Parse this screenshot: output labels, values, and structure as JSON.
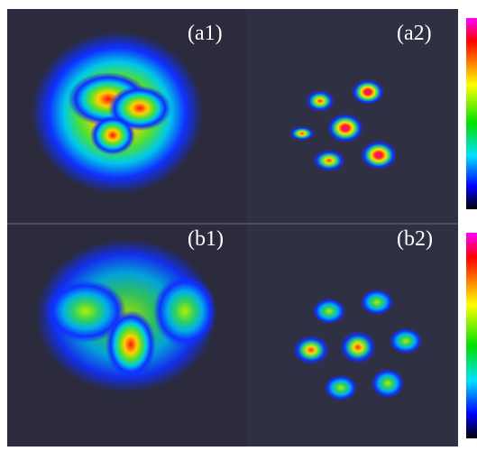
{
  "panels": [
    {
      "label": "(a1)"
    },
    {
      "label": "(a2)"
    },
    {
      "label": "(b1)"
    },
    {
      "label": "(b2)"
    }
  ]
}
